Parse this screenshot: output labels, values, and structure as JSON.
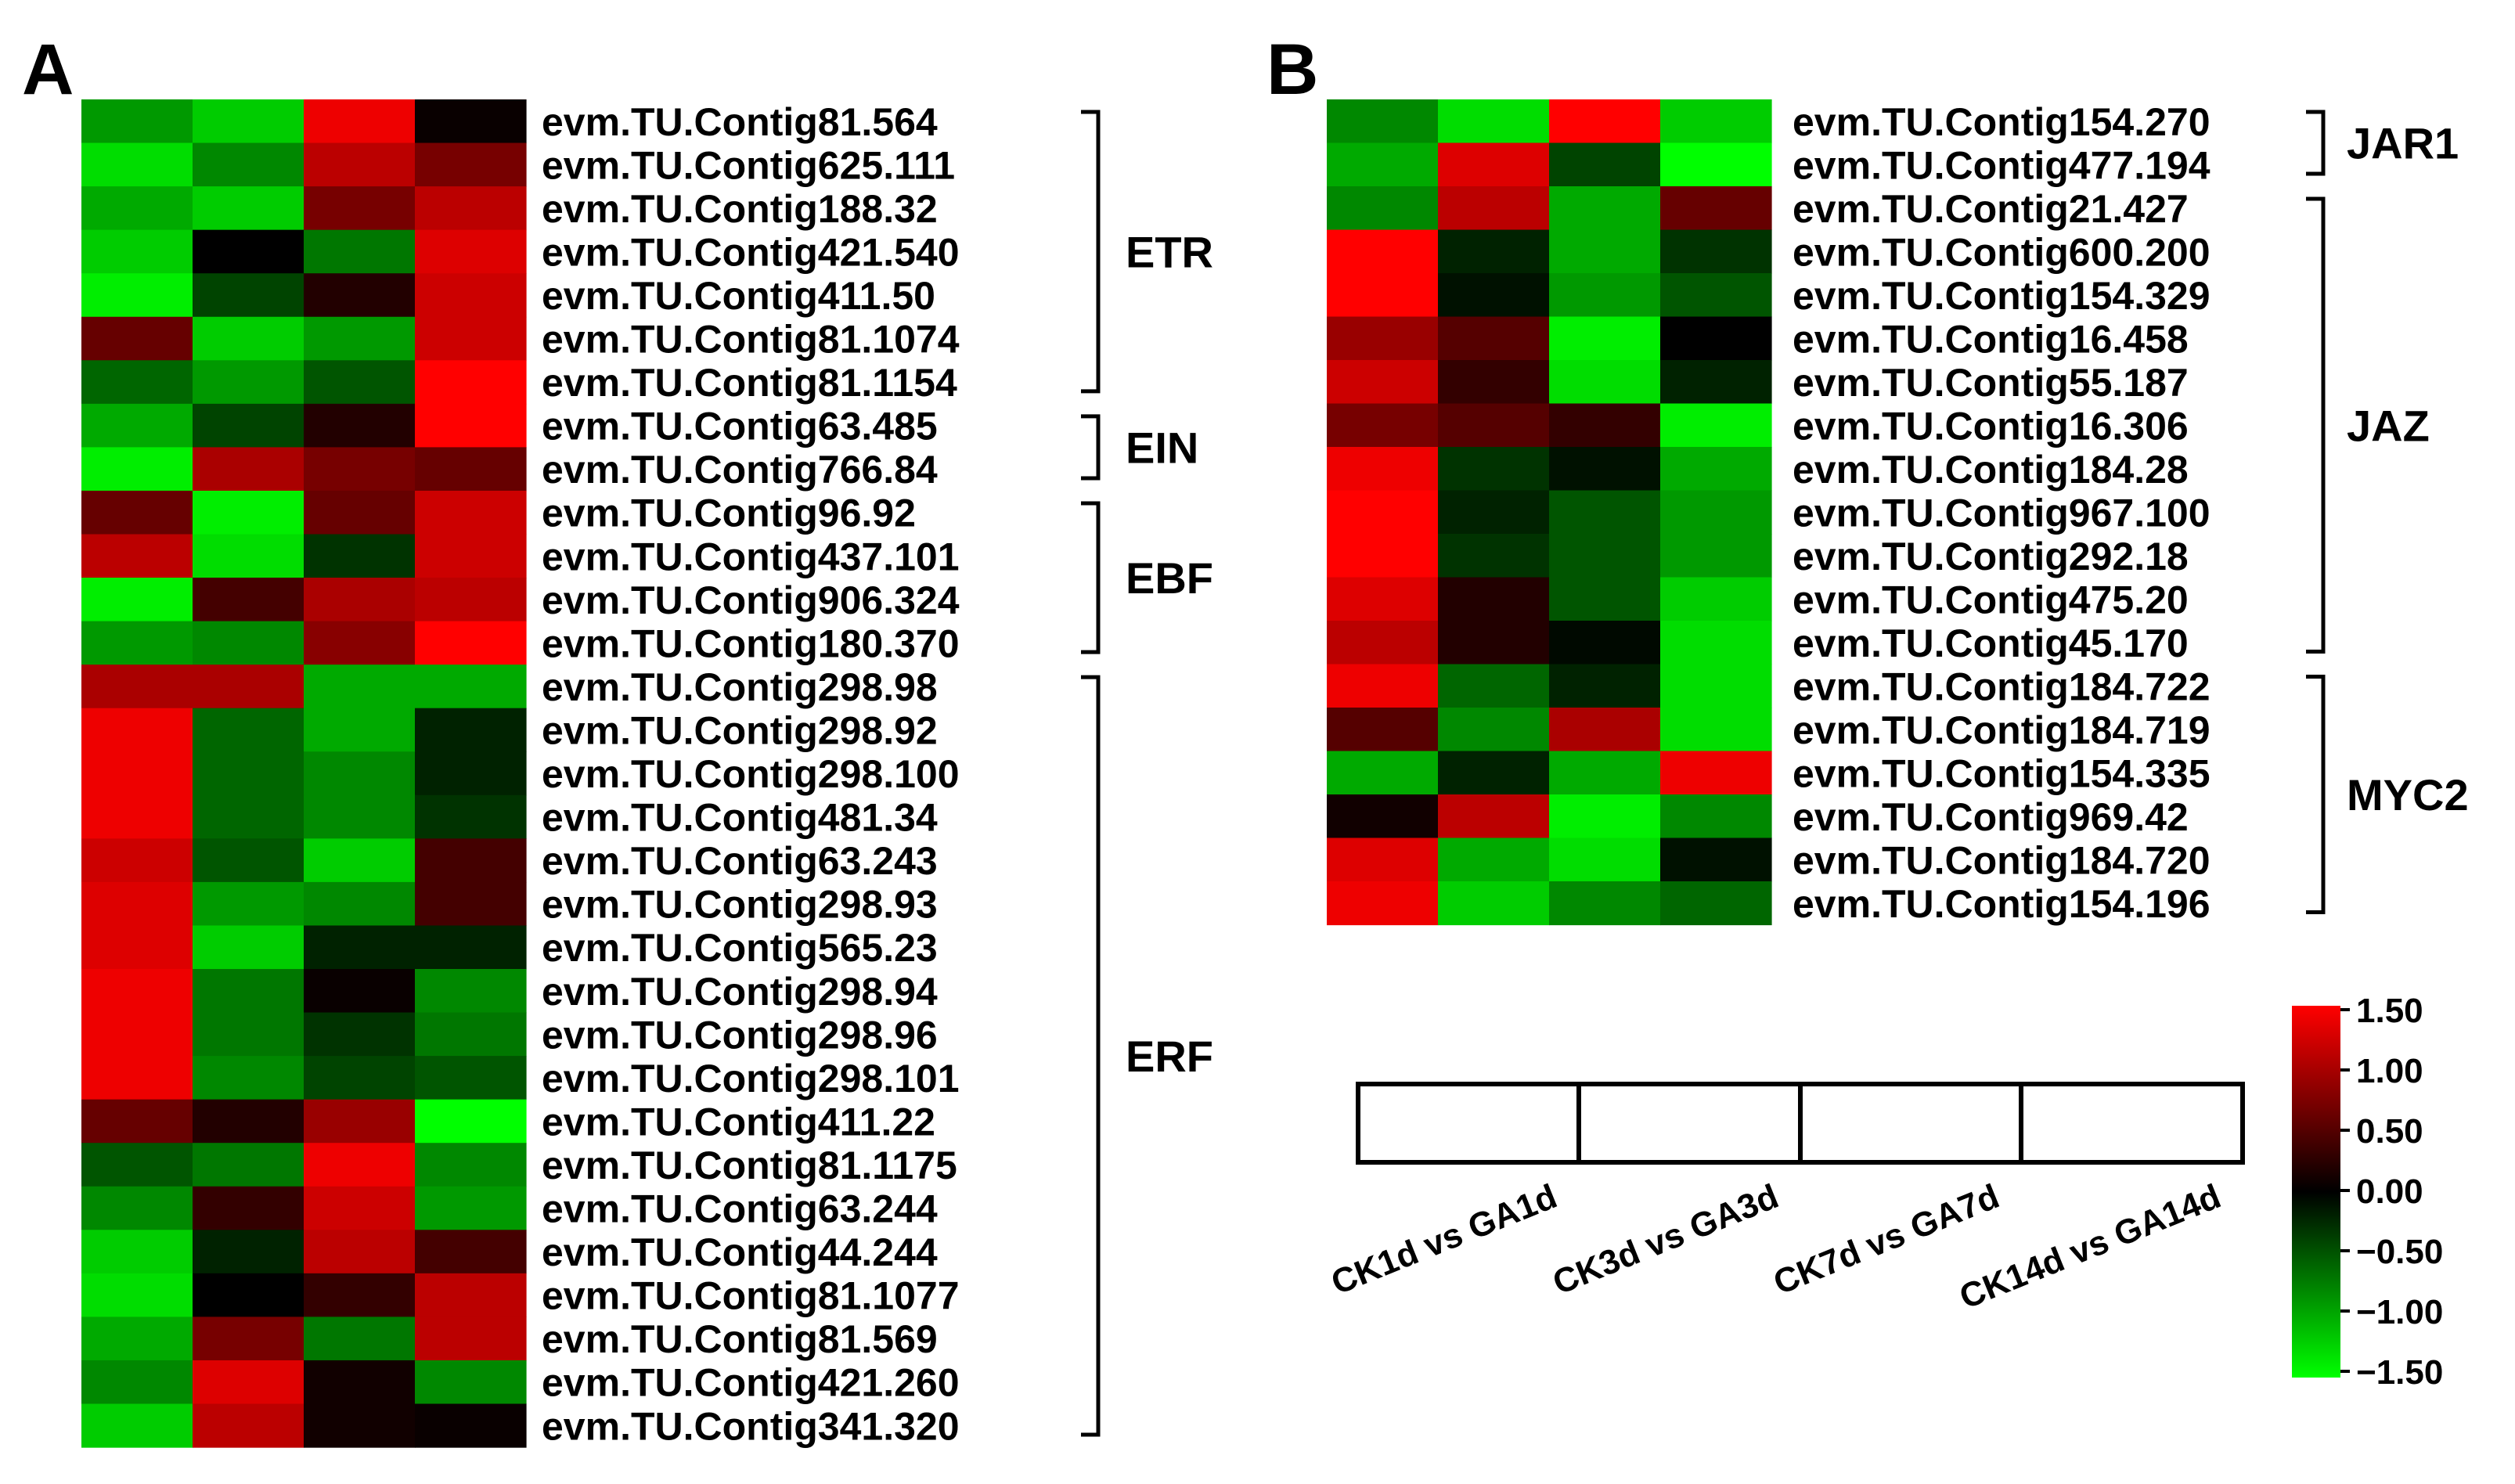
{
  "panels": {
    "a": "A",
    "b": "B"
  },
  "samples": [
    "CK1d vs GA1d",
    "CK3d vs GA3d",
    "CK7d vs GA7d",
    "CK14d vs GA14d"
  ],
  "colorbar": {
    "ticks": [
      "1.50",
      "1.00",
      "0.50",
      "0.00",
      "−0.50",
      "−1.00",
      "−1.50"
    ],
    "range": [
      -1.5,
      1.5
    ],
    "colors": {
      "high": "#ff0000",
      "mid": "#000000",
      "low": "#00ff00"
    }
  },
  "chart_data": [
    {
      "type": "heatmap",
      "panel": "A",
      "columns": [
        "CK1d vs GA1d",
        "CK3d vs GA3d",
        "CK7d vs GA7d",
        "CK14d vs GA14d"
      ],
      "rows": [
        "evm.TU.Contig81.564",
        "evm.TU.Contig625.111",
        "evm.TU.Contig188.32",
        "evm.TU.Contig421.540",
        "evm.TU.Contig411.50",
        "evm.TU.Contig81.1074",
        "evm.TU.Contig81.1154",
        "evm.TU.Contig63.485",
        "evm.TU.Contig766.84",
        "evm.TU.Contig96.92",
        "evm.TU.Contig437.101",
        "evm.TU.Contig906.324",
        "evm.TU.Contig180.370",
        "evm.TU.Contig298.98",
        "evm.TU.Contig298.92",
        "evm.TU.Contig298.100",
        "evm.TU.Contig481.34",
        "evm.TU.Contig63.243",
        "evm.TU.Contig298.93",
        "evm.TU.Contig565.23",
        "evm.TU.Contig298.94",
        "evm.TU.Contig298.96",
        "evm.TU.Contig298.101",
        "evm.TU.Contig411.22",
        "evm.TU.Contig81.1175",
        "evm.TU.Contig63.244",
        "evm.TU.Contig44.244",
        "evm.TU.Contig81.1077",
        "evm.TU.Contig81.569",
        "evm.TU.Contig421.260",
        "evm.TU.Contig341.320"
      ],
      "values": [
        [
          -0.9,
          -1.2,
          1.4,
          0.05
        ],
        [
          -1.3,
          -0.8,
          1.1,
          0.7
        ],
        [
          -1.0,
          -1.2,
          0.7,
          1.1
        ],
        [
          -1.2,
          0.0,
          -0.7,
          1.3
        ],
        [
          -1.4,
          -0.4,
          0.2,
          1.2
        ],
        [
          0.6,
          -1.2,
          -0.9,
          1.2
        ],
        [
          -0.6,
          -0.9,
          -0.5,
          1.5
        ],
        [
          -1.0,
          -0.4,
          0.2,
          1.5
        ],
        [
          -1.4,
          1.0,
          0.7,
          0.6
        ],
        [
          0.6,
          -1.4,
          0.6,
          1.2
        ],
        [
          1.1,
          -1.3,
          -0.3,
          1.2
        ],
        [
          -1.4,
          0.4,
          1.0,
          1.1
        ],
        [
          -0.9,
          -0.8,
          0.8,
          1.5
        ],
        [
          1.0,
          1.0,
          -1.0,
          -1.0
        ],
        [
          1.4,
          -0.6,
          -1.0,
          -0.2
        ],
        [
          1.4,
          -0.6,
          -0.8,
          -0.2
        ],
        [
          1.4,
          -0.6,
          -0.8,
          -0.3
        ],
        [
          1.2,
          -0.5,
          -1.2,
          0.4
        ],
        [
          1.3,
          -0.9,
          -0.8,
          0.4
        ],
        [
          1.3,
          -1.2,
          -0.2,
          -0.2
        ],
        [
          1.4,
          -0.7,
          0.05,
          -0.8
        ],
        [
          1.4,
          -0.7,
          -0.3,
          -0.7
        ],
        [
          1.4,
          -0.8,
          -0.4,
          -0.5
        ],
        [
          0.6,
          0.2,
          0.9,
          -1.5
        ],
        [
          -0.5,
          -0.7,
          1.4,
          -0.8
        ],
        [
          -0.8,
          0.3,
          1.2,
          -0.9
        ],
        [
          -1.2,
          -0.2,
          1.1,
          0.4
        ],
        [
          -1.3,
          0.0,
          0.3,
          1.1
        ],
        [
          -1.0,
          0.7,
          -0.7,
          1.1
        ],
        [
          -0.8,
          1.3,
          0.1,
          -0.8
        ],
        [
          -1.2,
          1.1,
          0.1,
          0.05
        ]
      ],
      "groups": [
        {
          "name": "ETR",
          "from": 0,
          "to": 6
        },
        {
          "name": "EIN",
          "from": 7,
          "to": 8
        },
        {
          "name": "EBF",
          "from": 9,
          "to": 12
        },
        {
          "name": "ERF",
          "from": 13,
          "to": 30
        }
      ]
    },
    {
      "type": "heatmap",
      "panel": "B",
      "columns": [
        "CK1d vs GA1d",
        "CK3d vs GA3d",
        "CK7d vs GA7d",
        "CK14d vs GA14d"
      ],
      "rows": [
        "evm.TU.Contig154.270",
        "evm.TU.Contig477.194",
        "evm.TU.Contig21.427",
        "evm.TU.Contig600.200",
        "evm.TU.Contig154.329",
        "evm.TU.Contig16.458",
        "evm.TU.Contig55.187",
        "evm.TU.Contig16.306",
        "evm.TU.Contig184.28",
        "evm.TU.Contig967.100",
        "evm.TU.Contig292.18",
        "evm.TU.Contig475.20",
        "evm.TU.Contig45.170",
        "evm.TU.Contig184.722",
        "evm.TU.Contig184.719",
        "evm.TU.Contig154.335",
        "evm.TU.Contig969.42",
        "evm.TU.Contig184.720",
        "evm.TU.Contig154.196"
      ],
      "values": [
        [
          -0.8,
          -1.3,
          1.5,
          -1.2
        ],
        [
          -1.0,
          1.3,
          -0.4,
          -1.5
        ],
        [
          -0.8,
          1.1,
          -1.0,
          0.6
        ],
        [
          1.5,
          -0.2,
          -1.0,
          -0.3
        ],
        [
          1.5,
          -0.1,
          -0.9,
          -0.5
        ],
        [
          0.9,
          0.5,
          -1.4,
          0.0
        ],
        [
          1.2,
          0.3,
          -1.3,
          -0.2
        ],
        [
          0.7,
          0.5,
          0.3,
          -1.4
        ],
        [
          1.4,
          -0.3,
          -0.1,
          -1.0
        ],
        [
          1.5,
          -0.2,
          -0.5,
          -0.9
        ],
        [
          1.5,
          -0.3,
          -0.5,
          -0.9
        ],
        [
          1.3,
          0.2,
          -0.5,
          -1.2
        ],
        [
          1.1,
          0.2,
          -0.05,
          -1.3
        ],
        [
          1.4,
          -0.6,
          -0.2,
          -1.3
        ],
        [
          0.5,
          -0.8,
          1.0,
          -1.3
        ],
        [
          -1.0,
          -0.2,
          -1.0,
          1.4
        ],
        [
          0.1,
          1.1,
          -1.4,
          -0.8
        ],
        [
          1.3,
          -1.0,
          -1.3,
          -0.1
        ],
        [
          1.4,
          -1.2,
          -0.8,
          -0.6
        ]
      ],
      "groups": [
        {
          "name": "JAR1",
          "from": 0,
          "to": 1
        },
        {
          "name": "JAZ",
          "from": 2,
          "to": 12
        },
        {
          "name": "MYC2",
          "from": 13,
          "to": 18
        }
      ]
    }
  ]
}
